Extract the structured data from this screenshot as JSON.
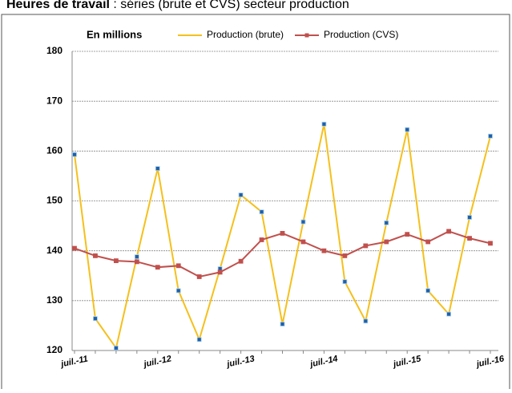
{
  "chart_data": {
    "type": "line",
    "title": "Heures  de travail",
    "subtitle": ": séries (brute et CVS) secteur production",
    "annotation": "En millions",
    "categories": [
      "juil.-11",
      null,
      null,
      null,
      "juil.-12",
      null,
      null,
      null,
      "juil.-13",
      null,
      null,
      null,
      "juil.-14",
      null,
      null,
      null,
      "juil.-15",
      null,
      null,
      null,
      "juil.-16"
    ],
    "series": [
      {
        "name": "Production (brute)",
        "color": "#f5c01c",
        "marker_color": "#1f5fa8",
        "values": [
          159.3,
          126.4,
          120.5,
          138.8,
          156.5,
          132,
          122.2,
          136.4,
          151.2,
          147.8,
          125.3,
          145.8,
          165.4,
          133.8,
          125.9,
          145.6,
          164.3,
          132,
          127.3,
          146.7,
          163
        ]
      },
      {
        "name": "Production (CVS)",
        "color": "#c0504d",
        "marker_color": "#c0504d",
        "values": [
          140.5,
          139,
          138,
          137.8,
          136.7,
          137,
          134.8,
          135.7,
          137.9,
          142.2,
          143.5,
          141.8,
          140,
          139,
          141,
          141.8,
          143.3,
          141.8,
          143.9,
          142.5,
          141.5
        ]
      }
    ],
    "ylim": [
      120,
      180
    ],
    "yticks": [
      120,
      130,
      140,
      150,
      160,
      170,
      180
    ],
    "grid": true
  }
}
